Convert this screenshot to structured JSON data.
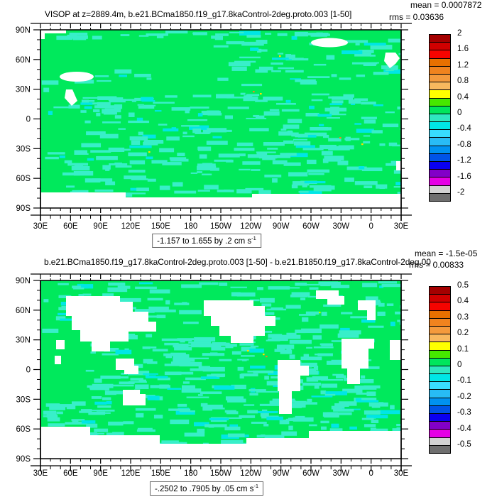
{
  "figure": {
    "background": "#ffffff",
    "text_color": "#000000",
    "frame_color": "#000000"
  },
  "axes": {
    "lon_ticks": [
      "30E",
      "60E",
      "90E",
      "120E",
      "150E",
      "180",
      "150W",
      "120W",
      "90W",
      "60W",
      "30W",
      "0",
      "30E"
    ],
    "lat_ticks": [
      "90N",
      "60N",
      "30N",
      "0",
      "30S",
      "60S",
      "90S"
    ]
  },
  "map_colors": {
    "ocean_green": "#00E95C",
    "patch_cyan": "#38EFC9",
    "patch_cyan2": "#00E6E6",
    "land_white": "#ffffff"
  },
  "colorbar_colors": [
    "#A40000",
    "#D00000",
    "#F60400",
    "#E87000",
    "#F0831E",
    "#F49A3C",
    "#F8B85E",
    "#FFFF00",
    "#46E800",
    "#00E65C",
    "#2EE8C0",
    "#00E6E6",
    "#38DCFF",
    "#28BCF5",
    "#0092F0",
    "#0054E6",
    "#0A00F0",
    "#8200C8",
    "#E600E6",
    "#D3D3D3",
    "#6F6F6F"
  ],
  "panels": [
    {
      "title": "VISOP at z=2889.4m, b.e21.BCma1850.f19_g17.8kaControl-2deg.proto.003 [1-50]",
      "mean_label": "mean = 0.0007872",
      "rms_label": "rms = 0.03636",
      "range_label": "-1.157 to 1.655 by .2 cm s",
      "range_sup": "-1",
      "colorbar_labels": [
        "2",
        "1.6",
        "1.2",
        "0.8",
        "0.4",
        "0",
        "-0.4",
        "-0.8",
        "-1.2",
        "-1.6",
        "-2"
      ]
    },
    {
      "title": "b.e21.BCma1850.f19_g17.8kaControl-2deg.proto.003 [1-50] - b.e21.B1850.f19_g17.8kaControl-2deg.00",
      "mean_label": "mean = -1.5e-05",
      "rms_label": "rms = 0.00833",
      "range_label": "-.2502 to .7905 by .05 cm s",
      "range_sup": "-1",
      "colorbar_labels": [
        "0.5",
        "0.4",
        "0.3",
        "0.2",
        "0.1",
        "0",
        "-0.1",
        "-0.2",
        "-0.3",
        "-0.4",
        "-0.5"
      ]
    }
  ],
  "chart_data": [
    {
      "type": "heatmap",
      "subtype": "filled-contour-world-map",
      "title": "VISOP at z=2889.4m, b.e21.BCma1850.f19_g17.8kaControl-2deg.proto.003 [1-50]",
      "variable": "VISOP",
      "depth": "z=2889.4m",
      "stats": {
        "mean": 0.0007872,
        "rms": 0.03636
      },
      "field_range": {
        "min": -1.157,
        "max": 1.655,
        "contour_step": 0.2,
        "units": "cm s^-1"
      },
      "colorbar": {
        "min": -2,
        "max": 2,
        "label_step": 0.4,
        "box_step": 0.2,
        "position": "right",
        "tick_labels": [
          "2",
          "1.6",
          "1.2",
          "0.8",
          "0.4",
          "0",
          "-0.4",
          "-0.8",
          "-1.2",
          "-1.6",
          "-2"
        ]
      },
      "x_axis": {
        "tick_labels": [
          "30E",
          "60E",
          "90E",
          "120E",
          "150E",
          "180",
          "150W",
          "120W",
          "90W",
          "60W",
          "30W",
          "0",
          "30E"
        ],
        "minor_step_deg": 10
      },
      "y_axis": {
        "tick_labels": [
          "90N",
          "60N",
          "30N",
          "0",
          "30S",
          "60S",
          "90S"
        ],
        "minor_step_deg": 10
      },
      "grid": false,
      "description": "Field is nearly uniform around 0: mostly 0-to-0.2 green with -0.2-to-0 cyan patches; small white masked areas (Arctic, Greenland, Caspian region, Antarctic band); a few yellow/orange specks above 0.4"
    },
    {
      "type": "heatmap",
      "subtype": "filled-contour-world-map-difference",
      "title": "b.e21.BCma1850.f19_g17.8kaControl-2deg.proto.003 [1-50] - b.e21.B1850.f19_g17.8kaControl-2deg.00",
      "stats": {
        "mean": -1.5e-05,
        "rms": 0.00833
      },
      "field_range": {
        "min": -0.2502,
        "max": 0.7905,
        "contour_step": 0.05,
        "units": "cm s^-1"
      },
      "colorbar": {
        "min": -0.5,
        "max": 0.5,
        "label_step": 0.1,
        "box_step": 0.05,
        "position": "right",
        "tick_labels": [
          "0.5",
          "0.4",
          "0.3",
          "0.2",
          "0.1",
          "0",
          "-0.1",
          "-0.2",
          "-0.3",
          "-0.4",
          "-0.5"
        ]
      },
      "x_axis": {
        "tick_labels": [
          "30E",
          "60E",
          "90E",
          "120E",
          "150E",
          "180",
          "150W",
          "120W",
          "90W",
          "60W",
          "30W",
          "0",
          "30E"
        ],
        "minor_step_deg": 10
      },
      "y_axis": {
        "tick_labels": [
          "90N",
          "60N",
          "30N",
          "0",
          "30S",
          "60S",
          "90S"
        ],
        "minor_step_deg": 10
      },
      "grid": false,
      "description": "Difference field near 0: green (0 to 0.05) with cyan (-0.05 to 0) patches; continents masked white (Asia, North America, Greenland, Europe, Africa, South America, Australia, Antarctica)"
    }
  ]
}
